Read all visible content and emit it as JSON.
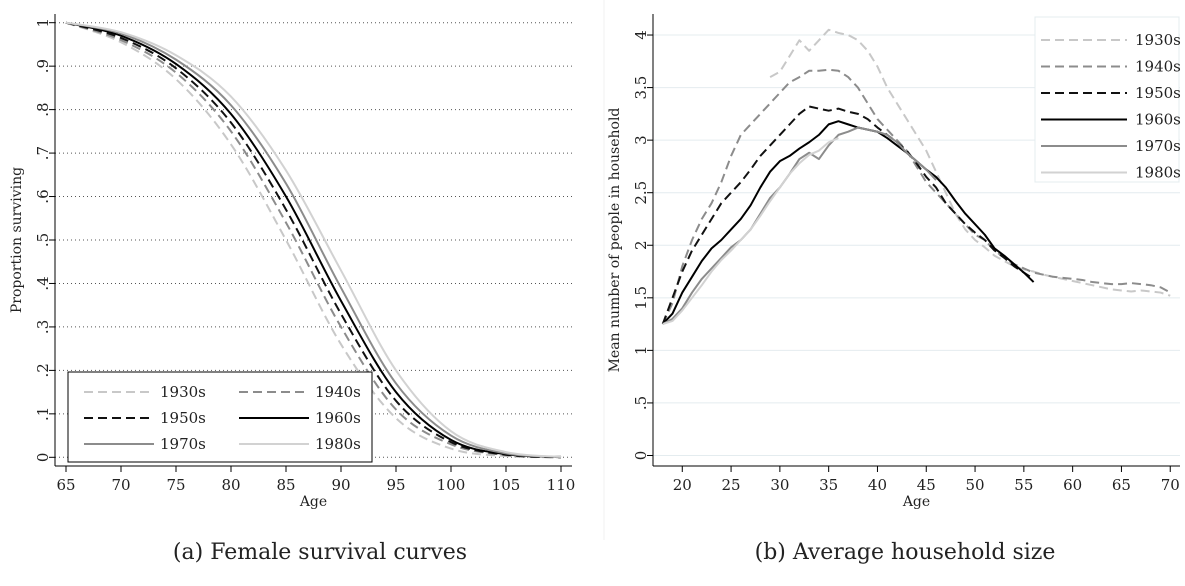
{
  "chart_data": [
    {
      "type": "line",
      "caption": "(a) Female survival curves",
      "xlabel": "Age",
      "ylabel": "Proportion surviving",
      "xlim": [
        64,
        111
      ],
      "ylim": [
        -0.02,
        1.02
      ],
      "xticks": [
        65,
        70,
        75,
        80,
        85,
        90,
        95,
        100,
        105,
        110
      ],
      "yticks": [
        0,
        0.1,
        0.2,
        0.3,
        0.4,
        0.5,
        0.6,
        0.7,
        0.8,
        0.9,
        1
      ],
      "ytick_labels": [
        "0",
        ".1",
        ".2",
        ".3",
        ".4",
        ".5",
        ".6",
        ".7",
        ".8",
        ".9",
        "1"
      ],
      "grid": "horizontal dotted",
      "legend": "bottom-left, 2 columns",
      "x": [
        65,
        70,
        75,
        80,
        85,
        90,
        95,
        100,
        105,
        110
      ],
      "series": [
        {
          "name": "1930s",
          "color": "#c8c8c8",
          "dash": "dashed",
          "values": [
            1.0,
            0.955,
            0.87,
            0.72,
            0.5,
            0.26,
            0.09,
            0.02,
            0.003,
            0.0
          ]
        },
        {
          "name": "1940s",
          "color": "#8c8c8c",
          "dash": "dashed",
          "values": [
            1.0,
            0.96,
            0.885,
            0.75,
            0.54,
            0.3,
            0.11,
            0.03,
            0.005,
            0.0
          ]
        },
        {
          "name": "1950s",
          "color": "#111111",
          "dash": "dashed",
          "values": [
            1.0,
            0.965,
            0.895,
            0.77,
            0.57,
            0.33,
            0.13,
            0.035,
            0.006,
            0.0
          ]
        },
        {
          "name": "1960s",
          "color": "#000000",
          "dash": "solid",
          "values": [
            1.0,
            0.97,
            0.905,
            0.79,
            0.6,
            0.36,
            0.15,
            0.04,
            0.007,
            0.001
          ]
        },
        {
          "name": "1970s",
          "color": "#8c8c8c",
          "dash": "solid",
          "values": [
            1.0,
            0.975,
            0.915,
            0.81,
            0.63,
            0.39,
            0.17,
            0.05,
            0.009,
            0.001
          ]
        },
        {
          "name": "1980s",
          "color": "#d2d2d2",
          "dash": "solid",
          "values": [
            1.0,
            0.978,
            0.925,
            0.83,
            0.66,
            0.43,
            0.2,
            0.06,
            0.012,
            0.001
          ]
        }
      ]
    },
    {
      "type": "line",
      "caption": "(b) Average household size",
      "xlabel": "Age",
      "ylabel": "Mean number of people in household",
      "xlim": [
        17,
        71
      ],
      "ylim": [
        -0.1,
        4.2
      ],
      "xticks": [
        20,
        25,
        30,
        35,
        40,
        45,
        50,
        55,
        60,
        65,
        70
      ],
      "yticks": [
        0,
        0.5,
        1,
        1.5,
        2,
        2.5,
        3,
        3.5,
        4
      ],
      "ytick_labels": [
        "0",
        ".5",
        "1",
        "1.5",
        "2",
        "2.5",
        "3",
        "3.5",
        "4"
      ],
      "grid": "horizontal light",
      "legend": "top-right",
      "series": [
        {
          "name": "1930s",
          "color": "#c8c8c8",
          "dash": "dashed",
          "x": [
            29,
            30,
            31,
            32,
            33,
            34,
            35,
            36,
            37,
            38,
            39,
            40,
            41,
            42,
            43,
            44,
            45,
            46,
            47,
            48,
            49,
            50,
            51,
            52,
            53,
            54,
            55,
            56,
            57,
            58,
            59,
            60,
            61,
            62,
            63,
            64,
            65,
            66,
            67,
            68,
            69,
            70
          ],
          "values": [
            3.6,
            3.65,
            3.8,
            3.95,
            3.85,
            3.95,
            4.05,
            4.02,
            4.0,
            3.95,
            3.85,
            3.7,
            3.5,
            3.35,
            3.2,
            3.05,
            2.9,
            2.7,
            2.5,
            2.3,
            2.15,
            2.05,
            1.98,
            1.9,
            1.85,
            1.8,
            1.77,
            1.75,
            1.72,
            1.7,
            1.68,
            1.66,
            1.64,
            1.62,
            1.6,
            1.58,
            1.57,
            1.56,
            1.57,
            1.56,
            1.55,
            1.52
          ]
        },
        {
          "name": "1940s",
          "color": "#8c8c8c",
          "dash": "dashed",
          "x": [
            18,
            19,
            20,
            21,
            22,
            23,
            24,
            25,
            26,
            27,
            28,
            29,
            30,
            31,
            32,
            33,
            34,
            35,
            36,
            37,
            38,
            39,
            40,
            41,
            42,
            43,
            44,
            45,
            46,
            47,
            48,
            49,
            50,
            51,
            52,
            53,
            54,
            55,
            56,
            57,
            58,
            59,
            60,
            61,
            62,
            63,
            64,
            65,
            66,
            67,
            68,
            69,
            70
          ],
          "values": [
            1.25,
            1.45,
            1.8,
            2.05,
            2.25,
            2.4,
            2.6,
            2.85,
            3.05,
            3.15,
            3.25,
            3.35,
            3.45,
            3.55,
            3.6,
            3.66,
            3.66,
            3.67,
            3.66,
            3.6,
            3.5,
            3.35,
            3.2,
            3.1,
            3.0,
            2.9,
            2.75,
            2.6,
            2.5,
            2.4,
            2.3,
            2.2,
            2.1,
            2.05,
            1.95,
            1.88,
            1.82,
            1.78,
            1.74,
            1.72,
            1.7,
            1.69,
            1.68,
            1.67,
            1.65,
            1.64,
            1.63,
            1.63,
            1.64,
            1.63,
            1.62,
            1.6,
            1.55
          ]
        },
        {
          "name": "1950s",
          "color": "#111111",
          "dash": "dashed",
          "x": [
            18,
            19,
            20,
            21,
            22,
            23,
            24,
            25,
            26,
            27,
            28,
            29,
            30,
            31,
            32,
            33,
            34,
            35,
            36,
            37,
            38,
            39,
            40,
            41,
            42,
            43,
            44,
            45,
            46,
            47,
            48,
            49,
            50,
            51,
            52,
            53,
            54,
            55,
            56
          ],
          "values": [
            1.25,
            1.5,
            1.75,
            1.95,
            2.1,
            2.25,
            2.4,
            2.5,
            2.6,
            2.72,
            2.85,
            2.95,
            3.05,
            3.15,
            3.25,
            3.32,
            3.3,
            3.28,
            3.3,
            3.27,
            3.25,
            3.2,
            3.12,
            3.05,
            2.98,
            2.9,
            2.78,
            2.65,
            2.55,
            2.4,
            2.3,
            2.2,
            2.12,
            2.05,
            1.95,
            1.88,
            1.8,
            1.74,
            1.68
          ]
        },
        {
          "name": "1960s",
          "color": "#000000",
          "dash": "solid",
          "x": [
            18,
            19,
            20,
            21,
            22,
            23,
            24,
            25,
            26,
            27,
            28,
            29,
            30,
            31,
            32,
            33,
            34,
            35,
            36,
            37,
            38,
            39,
            40,
            41,
            42,
            43,
            44,
            45,
            46,
            47,
            48,
            49,
            50,
            51,
            52,
            53,
            54,
            55,
            56
          ],
          "values": [
            1.25,
            1.35,
            1.55,
            1.7,
            1.85,
            1.97,
            2.05,
            2.15,
            2.25,
            2.38,
            2.55,
            2.7,
            2.8,
            2.85,
            2.92,
            2.98,
            3.05,
            3.15,
            3.18,
            3.15,
            3.12,
            3.1,
            3.08,
            3.02,
            2.95,
            2.88,
            2.8,
            2.72,
            2.65,
            2.55,
            2.42,
            2.3,
            2.2,
            2.1,
            1.97,
            1.9,
            1.82,
            1.74,
            1.65
          ]
        },
        {
          "name": "1970s",
          "color": "#8c8c8c",
          "dash": "solid",
          "x": [
            18,
            19,
            20,
            21,
            22,
            23,
            24,
            25,
            26,
            27,
            28,
            29,
            30,
            31,
            32,
            33,
            34,
            35,
            36,
            37,
            38,
            39,
            40,
            41,
            42,
            43,
            44,
            45,
            46
          ],
          "values": [
            1.25,
            1.3,
            1.4,
            1.55,
            1.68,
            1.78,
            1.88,
            1.98,
            2.05,
            2.15,
            2.3,
            2.45,
            2.55,
            2.68,
            2.82,
            2.88,
            2.82,
            2.95,
            3.05,
            3.08,
            3.12,
            3.1,
            3.08,
            3.05,
            2.98,
            2.88,
            2.8,
            2.72,
            2.62
          ]
        },
        {
          "name": "1980s",
          "color": "#d2d2d2",
          "dash": "solid",
          "x": [
            18,
            19,
            20,
            21,
            22,
            23,
            24,
            25,
            26,
            27,
            28,
            29,
            30,
            31,
            32,
            33,
            34,
            35,
            36
          ],
          "values": [
            1.25,
            1.28,
            1.38,
            1.5,
            1.62,
            1.75,
            1.86,
            1.95,
            2.05,
            2.15,
            2.28,
            2.42,
            2.55,
            2.68,
            2.78,
            2.86,
            2.9,
            2.98,
            3.02
          ]
        }
      ]
    }
  ]
}
